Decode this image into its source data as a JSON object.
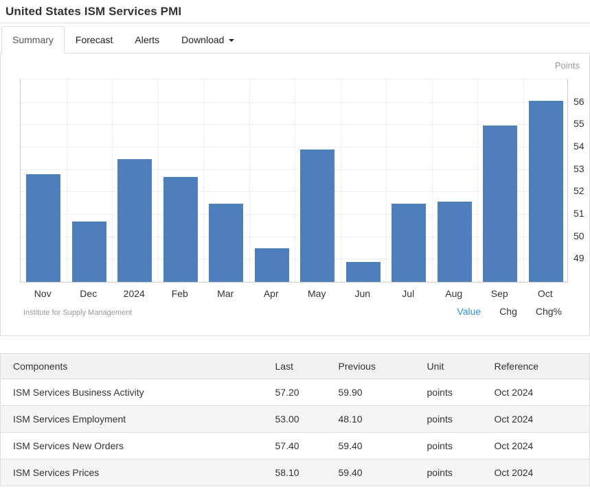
{
  "header": {
    "title": "United States ISM Services PMI"
  },
  "tabs": [
    {
      "label": "Summary",
      "active": true,
      "caret": false
    },
    {
      "label": "Forecast",
      "active": false,
      "caret": false
    },
    {
      "label": "Alerts",
      "active": false,
      "caret": false
    },
    {
      "label": "Download",
      "active": false,
      "caret": true
    }
  ],
  "chart_data": {
    "type": "bar",
    "title": "",
    "xlabel": "",
    "ylabel": "Points",
    "source": "Institute for Supply Management",
    "categories": [
      "Nov",
      "Dec",
      "2024",
      "Feb",
      "Mar",
      "Apr",
      "May",
      "Jun",
      "Jul",
      "Aug",
      "Sep",
      "Oct"
    ],
    "values": [
      52.7,
      50.6,
      53.4,
      52.6,
      51.4,
      49.4,
      53.8,
      48.8,
      51.4,
      51.5,
      54.9,
      56.0
    ],
    "yticks": [
      49,
      50,
      51,
      52,
      53,
      54,
      55,
      56
    ],
    "ylim": [
      47.9,
      57.0
    ],
    "grid": true,
    "legend": "none",
    "bar_color": "#4e7fbc"
  },
  "chart_links": [
    {
      "label": "Value",
      "active": true
    },
    {
      "label": "Chg",
      "active": false
    },
    {
      "label": "Chg%",
      "active": false
    }
  ],
  "table": {
    "headers": [
      "Components",
      "Last",
      "Previous",
      "Unit",
      "Reference"
    ],
    "rows": [
      [
        "ISM Services Business Activity",
        "57.20",
        "59.90",
        "points",
        "Oct 2024"
      ],
      [
        "ISM Services Employment",
        "53.00",
        "48.10",
        "points",
        "Oct 2024"
      ],
      [
        "ISM Services New Orders",
        "57.40",
        "59.40",
        "points",
        "Oct 2024"
      ],
      [
        "ISM Services Prices",
        "58.10",
        "59.40",
        "points",
        "Oct 2024"
      ]
    ]
  },
  "colors": {
    "accent_blue": "#2f8fdf",
    "bar_blue": "#4e7fbc",
    "text": "#333333",
    "muted": "#999999",
    "border": "#dddddd"
  }
}
